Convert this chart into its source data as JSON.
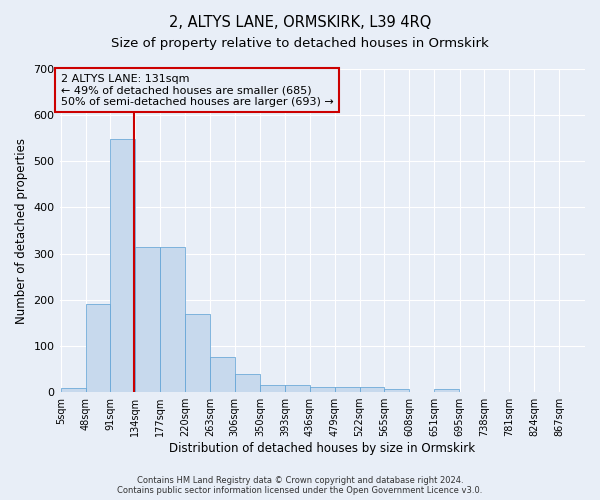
{
  "title": "2, ALTYS LANE, ORMSKIRK, L39 4RQ",
  "subtitle": "Size of property relative to detached houses in Ormskirk",
  "xlabel": "Distribution of detached houses by size in Ormskirk",
  "ylabel": "Number of detached properties",
  "footnote": "Contains HM Land Registry data © Crown copyright and database right 2024.\nContains public sector information licensed under the Open Government Licence v3.0.",
  "bar_edges": [
    5,
    48,
    91,
    134,
    177,
    220,
    263,
    306,
    350,
    393,
    436,
    479,
    522,
    565,
    608,
    651,
    695,
    738,
    781,
    824,
    867
  ],
  "bar_heights": [
    8,
    190,
    548,
    315,
    315,
    170,
    75,
    40,
    15,
    15,
    10,
    10,
    10,
    7,
    0,
    6,
    0,
    0,
    0,
    0
  ],
  "bar_color": "#c7d9ed",
  "bar_edge_color": "#5a9fd4",
  "vline_x": 131,
  "vline_color": "#cc0000",
  "annotation_text": "2 ALTYS LANE: 131sqm\n← 49% of detached houses are smaller (685)\n50% of semi-detached houses are larger (693) →",
  "ylim": [
    0,
    700
  ],
  "yticks": [
    0,
    100,
    200,
    300,
    400,
    500,
    600,
    700
  ],
  "bg_color": "#e8eef7",
  "grid_color": "#ffffff",
  "title_fontsize": 10.5,
  "subtitle_fontsize": 9.5,
  "xlabel_fontsize": 8.5,
  "ylabel_fontsize": 8.5,
  "annotation_fontsize": 8,
  "tick_fontsize": 7,
  "ytick_fontsize": 8,
  "footnote_fontsize": 6
}
